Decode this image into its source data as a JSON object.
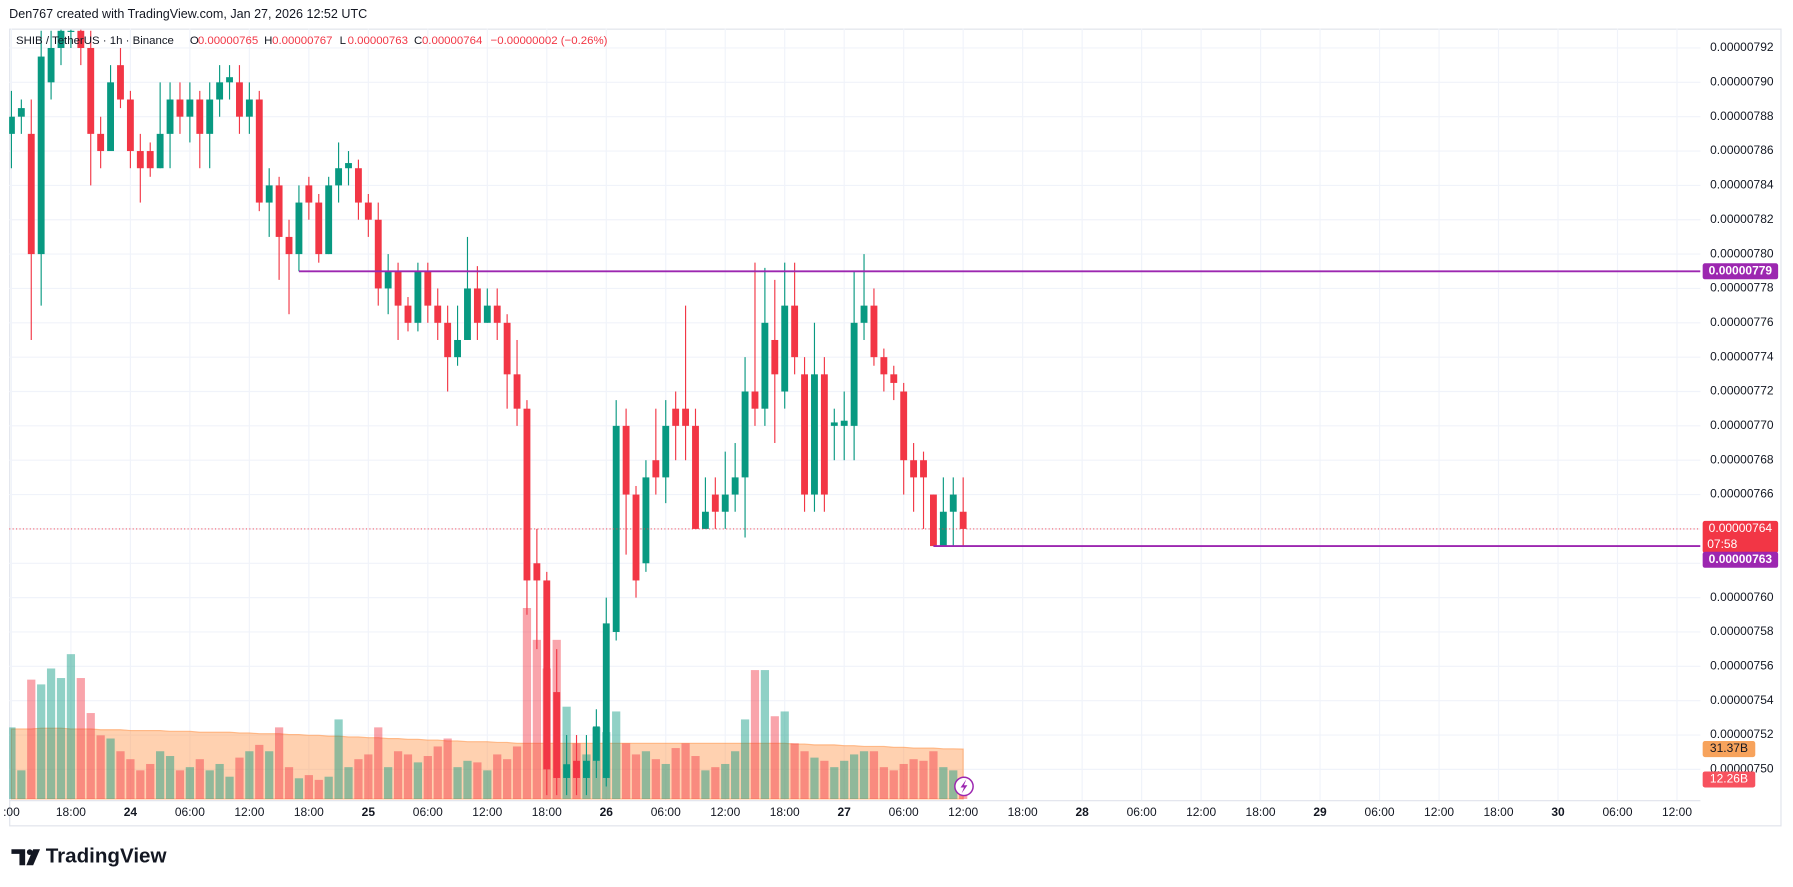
{
  "header": {
    "credit": "Den767 created with TradingView.com, Jan 27, 2026 12:52 UTC",
    "logo": "TradingView"
  },
  "chart_data": {
    "type": "candlestick",
    "symbol": "SHIB / TetherUS · 1h · Binance",
    "ohlc_keys": [
      "O",
      "H",
      "L",
      "C"
    ],
    "change": "−0.00000002 (−0.26%)",
    "countdown": "07:58",
    "up_color": "#089981",
    "down_color": "#f23645",
    "level_color": "#9c27b0",
    "grid": true,
    "xlim": [
      -0.23,
      170.36
    ],
    "xticks": [
      {
        "value": 0,
        "label": ":00"
      },
      {
        "value": 6,
        "label": "18:00"
      },
      {
        "value": 12,
        "label": "24"
      },
      {
        "value": 18,
        "label": "06:00"
      },
      {
        "value": 24,
        "label": "12:00"
      },
      {
        "value": 30,
        "label": "18:00"
      },
      {
        "value": 36,
        "label": "25"
      },
      {
        "value": 42,
        "label": "06:00"
      },
      {
        "value": 48,
        "label": "12:00"
      },
      {
        "value": 54,
        "label": "18:00"
      },
      {
        "value": 60,
        "label": "26"
      },
      {
        "value": 66,
        "label": "06:00"
      },
      {
        "value": 72,
        "label": "12:00"
      },
      {
        "value": 78,
        "label": "18:00"
      },
      {
        "value": 84,
        "label": "27"
      },
      {
        "value": 90,
        "label": "06:00"
      },
      {
        "value": 96,
        "label": "12:00"
      },
      {
        "value": 102,
        "label": "18:00"
      },
      {
        "value": 108,
        "label": "28"
      },
      {
        "value": 114,
        "label": "06:00"
      },
      {
        "value": 120,
        "label": "12:00"
      },
      {
        "value": 126,
        "label": "18:00"
      },
      {
        "value": 132,
        "label": "29"
      },
      {
        "value": 138,
        "label": "06:00"
      },
      {
        "value": 144,
        "label": "12:00"
      },
      {
        "value": 150,
        "label": "18:00"
      },
      {
        "value": 156,
        "label": "30"
      },
      {
        "value": 162,
        "label": "06:00"
      },
      {
        "value": 168,
        "label": "12:00"
      }
    ],
    "ylim": [
      7.4821e-06,
      7.9313e-06
    ],
    "yticks": [
      7.92e-06,
      {
        "value": 7.9e-06,
        "label": "0.00000790"
      },
      7.88e-06,
      7.86e-06,
      7.84e-06,
      7.82e-06,
      {
        "value": 7.8e-06,
        "label": "0.00000780"
      },
      7.78e-06,
      7.76e-06,
      7.74e-06,
      7.72e-06,
      {
        "value": 7.7e-06,
        "label": "0.00000770"
      },
      7.68e-06,
      7.66e-06,
      7.64e-06,
      7.62e-06,
      {
        "value": 7.6e-06,
        "label": "0.00000760"
      },
      7.58e-06,
      7.56e-06,
      7.54e-06,
      7.52e-06,
      {
        "value": 7.5e-06,
        "label": "0.00000750"
      }
    ],
    "open": [
      7.87e-06,
      7.88e-06,
      7.87e-06,
      7.8e-06,
      7.9e-06,
      7.92e-06,
      7.93e-06,
      7.93e-06,
      7.92e-06,
      7.87e-06,
      7.86e-06,
      7.91e-06,
      7.89e-06,
      7.86e-06,
      7.86e-06,
      7.85e-06,
      7.87e-06,
      7.89e-06,
      7.88e-06,
      7.89e-06,
      7.87e-06,
      7.89e-06,
      7.9e-06,
      7.9e-06,
      7.88e-06,
      7.89e-06,
      7.83e-06,
      7.84e-06,
      7.81e-06,
      7.8e-06,
      7.84e-06,
      7.83e-06,
      7.8e-06,
      7.84e-06,
      7.85e-06,
      7.85e-06,
      7.83e-06,
      7.82e-06,
      7.78e-06,
      7.79e-06,
      7.77e-06,
      7.76e-06,
      7.79e-06,
      7.77e-06,
      7.76e-06,
      7.74e-06,
      7.75e-06,
      7.78e-06,
      7.76e-06,
      7.77e-06,
      7.76e-06,
      7.73e-06,
      7.71e-06,
      7.62e-06,
      7.61e-06,
      7.545e-06,
      7.495e-06,
      7.505e-06,
      7.495e-06,
      7.505e-06,
      7.495e-06,
      7.58e-06,
      7.7e-06,
      7.66e-06,
      7.62e-06,
      7.68e-06,
      7.67e-06,
      7.71e-06,
      7.71e-06,
      7.7e-06,
      7.64e-06,
      7.66e-06,
      7.65e-06,
      7.66e-06,
      7.67e-06,
      7.72e-06,
      7.71e-06,
      7.75e-06,
      7.72e-06,
      7.77e-06,
      7.73e-06,
      7.66e-06,
      7.73e-06,
      7.7e-06,
      7.7e-06,
      7.7e-06,
      7.76e-06,
      7.77e-06,
      7.74e-06,
      7.73e-06,
      7.72e-06,
      7.68e-06,
      7.68e-06,
      7.66e-06,
      7.63e-06,
      7.65e-06,
      7.65e-06
    ],
    "high": [
      7.895e-06,
      7.89e-06,
      7.89e-06,
      7.93e-06,
      7.93e-06,
      7.935e-06,
      7.935e-06,
      7.935e-06,
      7.93e-06,
      7.88e-06,
      7.91e-06,
      7.92e-06,
      7.895e-06,
      7.87e-06,
      7.865e-06,
      7.9e-06,
      7.9e-06,
      7.9e-06,
      7.9e-06,
      7.895e-06,
      7.9e-06,
      7.91e-06,
      7.91e-06,
      7.91e-06,
      7.9e-06,
      7.895e-06,
      7.85e-06,
      7.845e-06,
      7.82e-06,
      7.84e-06,
      7.845e-06,
      7.835e-06,
      7.845e-06,
      7.865e-06,
      7.86e-06,
      7.855e-06,
      7.835e-06,
      7.83e-06,
      7.8e-06,
      7.795e-06,
      7.775e-06,
      7.795e-06,
      7.795e-06,
      7.78e-06,
      7.77e-06,
      7.77e-06,
      7.81e-06,
      7.793e-06,
      7.78e-06,
      7.78e-06,
      7.765e-06,
      7.75e-06,
      7.715e-06,
      7.64e-06,
      7.615e-06,
      7.57e-06,
      7.52e-06,
      7.52e-06,
      7.52e-06,
      7.535e-06,
      7.6e-06,
      7.715e-06,
      7.71e-06,
      7.665e-06,
      7.68e-06,
      7.71e-06,
      7.715e-06,
      7.72e-06,
      7.77e-06,
      7.71e-06,
      7.67e-06,
      7.67e-06,
      7.685e-06,
      7.69e-06,
      7.74e-06,
      7.795e-06,
      7.792e-06,
      7.785e-06,
      7.795e-06,
      7.795e-06,
      7.74e-06,
      7.76e-06,
      7.74e-06,
      7.71e-06,
      7.72e-06,
      7.79e-06,
      7.8e-06,
      7.78e-06,
      7.745e-06,
      7.735e-06,
      7.725e-06,
      7.69e-06,
      7.685e-06,
      7.66e-06,
      7.67e-06,
      7.67e-06,
      7.67e-06
    ],
    "low": [
      7.85e-06,
      7.87e-06,
      7.75e-06,
      7.77e-06,
      7.89e-06,
      7.91e-06,
      7.92e-06,
      7.91e-06,
      7.84e-06,
      7.85e-06,
      7.86e-06,
      7.885e-06,
      7.85e-06,
      7.83e-06,
      7.845e-06,
      7.85e-06,
      7.85e-06,
      7.87e-06,
      7.865e-06,
      7.85e-06,
      7.85e-06,
      7.88e-06,
      7.89e-06,
      7.87e-06,
      7.87e-06,
      7.825e-06,
      7.81e-06,
      7.785e-06,
      7.765e-06,
      7.79e-06,
      7.82e-06,
      7.795e-06,
      7.8e-06,
      7.83e-06,
      7.84e-06,
      7.82e-06,
      7.81e-06,
      7.77e-06,
      7.765e-06,
      7.75e-06,
      7.755e-06,
      7.755e-06,
      7.76e-06,
      7.75e-06,
      7.72e-06,
      7.735e-06,
      7.75e-06,
      7.75e-06,
      7.76e-06,
      7.75e-06,
      7.71e-06,
      7.7e-06,
      7.59e-06,
      7.57e-06,
      7.485e-06,
      7.485e-06,
      7.485e-06,
      7.485e-06,
      7.485e-06,
      7.495e-06,
      7.49e-06,
      7.575e-06,
      7.625e-06,
      7.6e-06,
      7.615e-06,
      7.66e-06,
      7.655e-06,
      7.68e-06,
      7.68e-06,
      7.64e-06,
      7.64e-06,
      7.64e-06,
      7.64e-06,
      7.65e-06,
      7.635e-06,
      7.7e-06,
      7.7e-06,
      7.69e-06,
      7.71e-06,
      7.73e-06,
      7.65e-06,
      7.65e-06,
      7.65e-06,
      7.68e-06,
      7.68e-06,
      7.68e-06,
      7.75e-06,
      7.735e-06,
      7.72e-06,
      7.715e-06,
      7.66e-06,
      7.65e-06,
      7.64e-06,
      7.63e-06,
      7.63e-06,
      7.63e-06,
      7.63e-06
    ],
    "close": [
      7.88e-06,
      7.885e-06,
      7.8e-06,
      7.915e-06,
      7.92e-06,
      7.93e-06,
      7.93e-06,
      7.92e-06,
      7.87e-06,
      7.86e-06,
      7.9e-06,
      7.89e-06,
      7.86e-06,
      7.85e-06,
      7.85e-06,
      7.87e-06,
      7.89e-06,
      7.88e-06,
      7.89e-06,
      7.87e-06,
      7.89e-06,
      7.9e-06,
      7.903e-06,
      7.88e-06,
      7.89e-06,
      7.83e-06,
      7.84e-06,
      7.81e-06,
      7.8e-06,
      7.83e-06,
      7.83e-06,
      7.8e-06,
      7.84e-06,
      7.85e-06,
      7.853e-06,
      7.83e-06,
      7.82e-06,
      7.78e-06,
      7.79e-06,
      7.77e-06,
      7.76e-06,
      7.79e-06,
      7.77e-06,
      7.76e-06,
      7.74e-06,
      7.75e-06,
      7.78e-06,
      7.76e-06,
      7.77e-06,
      7.76e-06,
      7.73e-06,
      7.71e-06,
      7.61e-06,
      7.61e-06,
      7.5e-06,
      7.495e-06,
      7.503e-06,
      7.495e-06,
      7.505e-06,
      7.525e-06,
      7.585e-06,
      7.7e-06,
      7.66e-06,
      7.61e-06,
      7.67e-06,
      7.67e-06,
      7.7e-06,
      7.7e-06,
      7.7e-06,
      7.64e-06,
      7.65e-06,
      7.65e-06,
      7.66e-06,
      7.67e-06,
      7.72e-06,
      7.71e-06,
      7.76e-06,
      7.73e-06,
      7.77e-06,
      7.74e-06,
      7.66e-06,
      7.73e-06,
      7.66e-06,
      7.702e-06,
      7.703e-06,
      7.76e-06,
      7.77e-06,
      7.74e-06,
      7.73e-06,
      7.725e-06,
      7.68e-06,
      7.67e-06,
      7.67e-06,
      7.63e-06,
      7.65e-06,
      7.66e-06,
      7.64e-06
    ],
    "levels": [
      7.79e-06,
      7.63e-06
    ],
    "volume": {
      "ylim": [
        0,
        130
      ],
      "up_color": "#089981",
      "down_color": "#f23645",
      "ma_color": "#ff9850",
      "values": [
        45,
        18,
        75,
        72,
        82,
        76,
        91,
        76,
        54,
        40,
        38,
        30,
        25,
        18,
        22,
        30,
        27,
        18,
        20,
        25,
        18,
        22,
        14,
        26,
        30,
        34,
        30,
        45,
        20,
        13,
        15,
        12,
        14,
        50,
        20,
        25,
        28,
        45,
        20,
        30,
        28,
        23,
        27,
        33,
        38,
        20,
        24,
        23,
        18,
        28,
        25,
        33,
        120,
        100,
        82,
        100,
        58,
        35,
        28,
        45,
        42,
        55,
        35,
        28,
        30,
        25,
        22,
        32,
        35,
        27,
        18,
        20,
        22,
        30,
        50,
        81,
        81,
        52,
        55,
        35,
        30,
        26,
        24,
        20,
        24,
        28,
        30,
        30,
        20,
        18,
        22,
        25,
        24,
        30,
        20,
        18,
        12.26
      ],
      "ma": [
        44,
        44,
        44,
        44.5,
        44.5,
        44.5,
        44,
        44,
        44,
        43.5,
        43.5,
        43.5,
        43,
        43,
        43,
        43,
        42.5,
        42.5,
        42.5,
        42,
        42,
        42,
        42,
        41.5,
        41.5,
        41,
        41,
        41,
        40.5,
        40.5,
        40,
        40,
        39.5,
        39.5,
        39,
        39,
        38.5,
        38.5,
        38,
        38,
        37.5,
        37.5,
        37,
        37,
        36.5,
        36.5,
        36,
        36,
        36,
        35.5,
        35.5,
        35,
        35,
        35,
        35,
        35,
        35,
        35,
        35,
        35,
        35,
        35,
        35,
        35,
        35,
        35,
        35,
        35,
        35,
        35,
        35,
        35,
        35,
        35,
        35,
        35,
        35,
        35,
        35,
        34.5,
        34.5,
        34,
        34,
        34,
        33.5,
        33.5,
        33,
        33,
        33,
        32.5,
        32.5,
        32,
        32,
        32,
        31.5,
        31.5,
        31.37
      ],
      "value_label": "12.26B",
      "ma_label": "31.37B"
    }
  }
}
